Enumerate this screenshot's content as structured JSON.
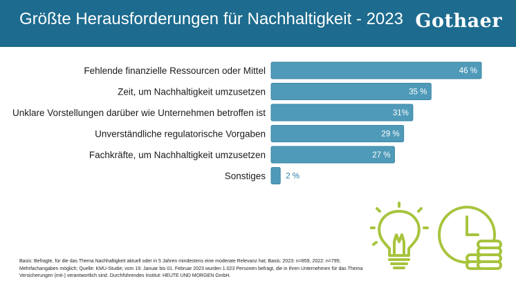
{
  "header": {
    "title": "Größte Herausforderungen für Nachhaltigkeit - 2023",
    "brand": "Gothaer"
  },
  "colors": {
    "header_bg": "#1d6b8e",
    "bar": "#4f9ab8",
    "bar_border": "#3c87a6",
    "value_inside": "#ffffff",
    "value_outside": "#2a7ea3",
    "icon_green": "#a7c43d"
  },
  "icons": [
    "lightbulb-icon",
    "clock-icon",
    "coin-stack-icon"
  ],
  "chart_data": {
    "type": "bar",
    "orientation": "horizontal",
    "categories": [
      "Fehlende finanzielle Ressourcen oder Mittel",
      "Zeit, um Nachhaltigkeit umzusetzen",
      "Unklare Vorstellungen darüber wie Unternehmen betroffen ist",
      "Unverständliche regulatorische Vorgaben",
      "Fachkräfte, um Nachhaltigkeit umzusetzen",
      "Sonstiges"
    ],
    "values": [
      46,
      35,
      31,
      29,
      27,
      2
    ],
    "value_labels": [
      "46 %",
      "35 %",
      "31%",
      "29 %",
      "27 %",
      "2 %"
    ],
    "xlim": [
      0,
      46
    ],
    "grid": false,
    "legend": "none"
  },
  "footnote": "Basis: Befragte, für die das Thema Nachhaltigkeit aktuell oder in 5 Jahren mindestens eine moderate Relevanz hat; Basis: 2023: n=859, 2022: n=795; Mehrfachangaben möglich; Quelle: KMU-Studie; vom 19. Januar bis 01. Februar 2023 wurden 1.023 Personen befragt, die in ihren Unternehmen für das Thema Versicherungen (mit-) verantwortlich sind. Durchführendes Institut: HEUTE UND MORGEN GmbH."
}
